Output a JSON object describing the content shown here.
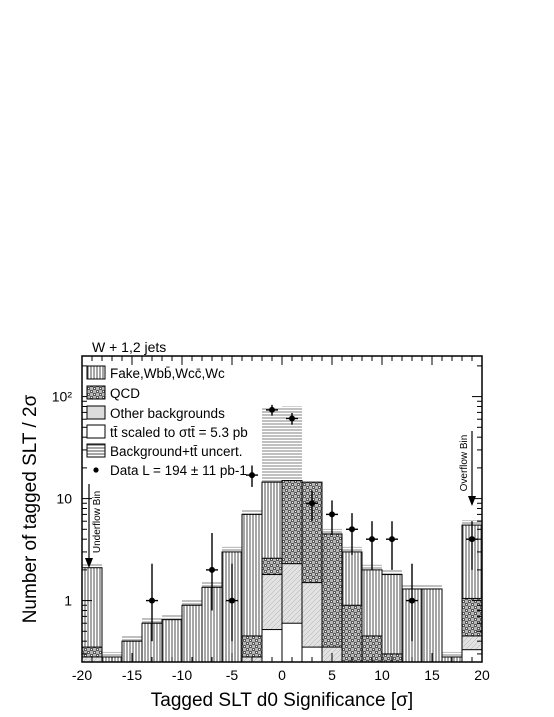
{
  "chart_data": {
    "type": "bar",
    "title": "W + 1,2 jets",
    "xlabel": "Tagged SLT  d0 Significance [σ]",
    "ylabel": "Number of tagged SLT / 2σ",
    "xlim": [
      -20,
      20
    ],
    "ylim": [
      0.25,
      250
    ],
    "yscale": "log",
    "x_ticks": [
      -20,
      -15,
      -10,
      -5,
      0,
      5,
      10,
      15,
      20
    ],
    "x_tick_labels": [
      "-20",
      "-15",
      "-10",
      "-5",
      "0",
      "5",
      "10",
      "15",
      "20"
    ],
    "y_ticks": [
      1,
      10,
      100
    ],
    "y_tick_labels": [
      "1",
      "10",
      "10²"
    ],
    "bin_edges": [
      -20,
      -18,
      -16,
      -14,
      -12,
      -10,
      -8,
      -6,
      -4,
      -2,
      0,
      2,
      4,
      6,
      8,
      10,
      12,
      14,
      16,
      18,
      20
    ],
    "series": [
      {
        "name": "Fake,Wbb̄,Wcc̄,Wc",
        "style": "vertical-hatch",
        "values": [
          2.1,
          0.28,
          0.4,
          0.6,
          0.65,
          0.9,
          1.35,
          3.0,
          7.0,
          14.5,
          15.0,
          9.0,
          4.5,
          3.0,
          2.0,
          1.8,
          1.3,
          1.3,
          0.28,
          5.5
        ]
      },
      {
        "name": "QCD",
        "style": "checker",
        "values": [
          0.35,
          0,
          0,
          0,
          0,
          0,
          0,
          0,
          0.45,
          2.6,
          15.0,
          14.5,
          4.5,
          0.9,
          0.45,
          0.3,
          0,
          0,
          0,
          1.05
        ]
      },
      {
        "name": "Other backgrounds",
        "style": "light-gray",
        "values": [
          0.28,
          0,
          0,
          0,
          0,
          0,
          0,
          0,
          0.28,
          1.8,
          2.3,
          1.5,
          0.35,
          0,
          0,
          0,
          0,
          0,
          0,
          0.45
        ]
      },
      {
        "name": "tt̄ scaled to σtt̄ = 5.3 pb",
        "style": "open",
        "values": [
          0,
          0,
          0,
          0,
          0,
          0,
          0,
          0,
          0,
          0.52,
          0.6,
          0.35,
          0,
          0,
          0,
          0,
          0,
          0,
          0,
          0.33
        ]
      },
      {
        "name": "Background+tt̄ uncert.",
        "style": "horizontal-hatch",
        "values": [
          0,
          0,
          0,
          0,
          0,
          0,
          0,
          0,
          0,
          70,
          72,
          0,
          0,
          0,
          0,
          0,
          0,
          0,
          0,
          0
        ]
      }
    ],
    "data_points": {
      "name": "Data L = 194 ± 11 pb-1",
      "x": [
        -13,
        -7,
        -5,
        -3,
        -1,
        1,
        3,
        5,
        7,
        9,
        11,
        13,
        19
      ],
      "y": [
        1,
        2,
        1,
        17,
        74,
        61,
        9,
        7,
        5,
        4,
        4,
        1,
        4
      ],
      "y_err_low": [
        0.6,
        1.2,
        0.6,
        4,
        9,
        8,
        3,
        2.6,
        2.2,
        2.0,
        2.0,
        0.6,
        2.0
      ],
      "y_err_high": [
        1.3,
        2.6,
        1.3,
        4.1,
        9,
        8,
        3,
        2.6,
        2.2,
        2.0,
        2.0,
        1.3,
        2.0
      ]
    },
    "legend": {
      "placement": "top-left",
      "entries": [
        "Fake,Wbb̄,Wcc̄,Wc",
        "QCD",
        "Other backgrounds",
        "tt̄ scaled to σtt̄ = 5.3 pb",
        "Background+tt̄ uncert.",
        "Data L = 194 ± 11 pb-1"
      ]
    },
    "annotations": {
      "underflow": "Underflow Bin",
      "overflow": "Overflow Bin"
    }
  }
}
